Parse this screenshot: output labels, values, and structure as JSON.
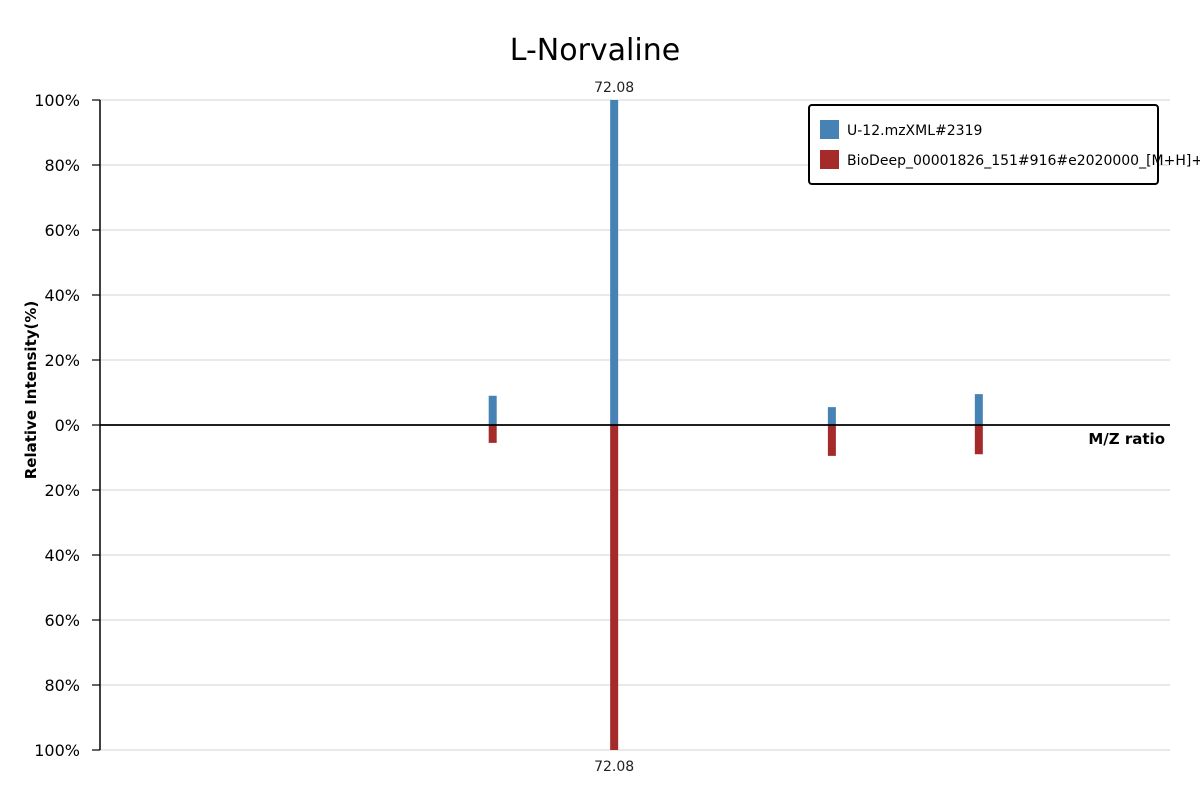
{
  "chart_data": {
    "type": "bar",
    "title": "L-Norvaline",
    "xlabel": "M/Z ratio",
    "ylabel": "Relative Intensity(%)",
    "ylim": [
      -100,
      100
    ],
    "y_ticks": [
      "100%",
      "80%",
      "60%",
      "40%",
      "20%",
      "0%",
      "20%",
      "40%",
      "60%",
      "80%",
      "100%"
    ],
    "grid": true,
    "legend_position": "top-right",
    "series": [
      {
        "name": "U-12.mzXML#2319",
        "color": "#4682b4",
        "direction": "up",
        "peaks": [
          {
            "mz": 55.05,
            "intensity": 9,
            "label": ""
          },
          {
            "mz": 72.08,
            "intensity": 100,
            "label": "72.08"
          },
          {
            "mz": 102.6,
            "intensity": 5.5,
            "label": ""
          },
          {
            "mz": 123.2,
            "intensity": 9.5,
            "label": ""
          }
        ]
      },
      {
        "name": "BioDeep_00001826_151#916#e2020000_[M+H]+",
        "color": "#a52a2a",
        "direction": "down",
        "peaks": [
          {
            "mz": 55.05,
            "intensity": 5.5,
            "label": ""
          },
          {
            "mz": 72.08,
            "intensity": 100,
            "label": "72.08"
          },
          {
            "mz": 102.6,
            "intensity": 9.5,
            "label": ""
          },
          {
            "mz": 123.2,
            "intensity": 9,
            "label": ""
          }
        ]
      }
    ]
  }
}
